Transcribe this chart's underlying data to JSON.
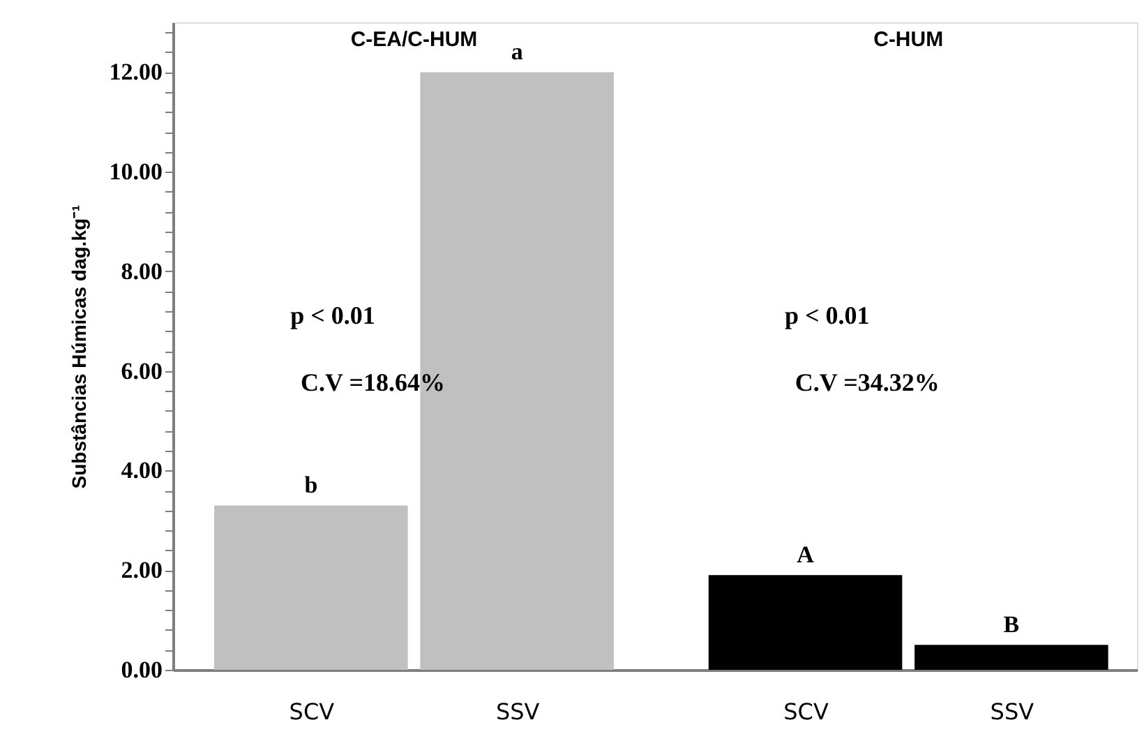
{
  "chart_data": {
    "type": "bar",
    "categories": [
      "SCV",
      "SSV",
      "SCV",
      "SSV"
    ],
    "values": [
      3.3,
      12.0,
      1.9,
      0.5
    ],
    "colors": [
      "#c0c0c0",
      "#c0c0c0",
      "#000000",
      "#000000"
    ],
    "value_labels": [
      "b",
      "a",
      "A",
      "B"
    ],
    "ylabel": "Substâncias Húmicas dag.kg⁻¹",
    "ylim": [
      0,
      13
    ],
    "yticks": [
      {
        "value": 0,
        "label": "0.00"
      },
      {
        "value": 0.4,
        "label": null
      },
      {
        "value": 0.8,
        "label": null
      },
      {
        "value": 1.2,
        "label": null
      },
      {
        "value": 1.6,
        "label": null
      },
      {
        "value": 2,
        "label": "2.00"
      },
      {
        "value": 2.4,
        "label": null
      },
      {
        "value": 2.8,
        "label": null
      },
      {
        "value": 3.2,
        "label": null
      },
      {
        "value": 3.6,
        "label": null
      },
      {
        "value": 4,
        "label": "4.00"
      },
      {
        "value": 4.4,
        "label": null
      },
      {
        "value": 4.8,
        "label": null
      },
      {
        "value": 5.2,
        "label": null
      },
      {
        "value": 5.6,
        "label": null
      },
      {
        "value": 6,
        "label": "6.00"
      },
      {
        "value": 6.4,
        "label": null
      },
      {
        "value": 6.8,
        "label": null
      },
      {
        "value": 7.2,
        "label": null
      },
      {
        "value": 7.6,
        "label": null
      },
      {
        "value": 8,
        "label": "8.00"
      },
      {
        "value": 8.4,
        "label": null
      },
      {
        "value": 8.8,
        "label": null
      },
      {
        "value": 9.2,
        "label": null
      },
      {
        "value": 9.6,
        "label": null
      },
      {
        "value": 10,
        "label": "10.00"
      },
      {
        "value": 10.4,
        "label": null
      },
      {
        "value": 10.8,
        "label": null
      },
      {
        "value": 11.2,
        "label": null
      },
      {
        "value": 11.6,
        "label": null
      },
      {
        "value": 12,
        "label": "12.00"
      },
      {
        "value": 12.4,
        "label": null
      },
      {
        "value": 12.8,
        "label": null
      }
    ],
    "grid": false,
    "annotations": [
      "C-EA/C-HUM",
      "C-HUM",
      "p < 0.01",
      "C.V =18.64%",
      "p < 0.01",
      "C.V =34.32%"
    ]
  }
}
